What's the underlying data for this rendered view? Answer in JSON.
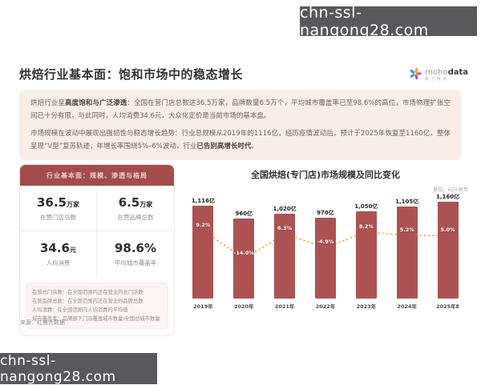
{
  "watermark": {
    "text": "chn-ssl-nangong28.com"
  },
  "header": {
    "title": "烘焙行业基本面：饱和市场中的稳态增长",
    "logo": {
      "name_light": "moho",
      "name_bold": "data",
      "subtitle": "魔方数据"
    }
  },
  "intro": {
    "p1_pre": "烘焙行业呈",
    "p1_bold": "高度饱和与广泛渗透",
    "p1_post": "：全国在营门店总数达36.5万家，品牌数量6.5万个，平均城市覆盖率已至98.6%的高位，市场物理扩张空间已十分有限，与此同时，人均消费34.6元，大众化定价是当前市场的基本盘。",
    "p2_pre": "市场规模在波动中展现出强韧性与稳态增长趋势：行业总规模从2019年的1116亿，经历疫情波动后，预计于2025年恢复至1160亿，整体呈现“V型”复苏轨迹，年增长率围绕5%–6%波动，行业",
    "p2_bold": "已告别高增长时代",
    "p2_post": "。"
  },
  "panel": {
    "header": "行业基本面：规模、渗透与格局",
    "stats": [
      {
        "num": "36.5",
        "unit": "万家",
        "label": "在营门店总数"
      },
      {
        "num": "6.5",
        "unit": "万家",
        "label": "在营品牌总数"
      },
      {
        "num": "34.6",
        "unit": "元",
        "label": "人均消费"
      },
      {
        "num": "98.6%",
        "unit": "",
        "label": "平均城市覆盖率"
      }
    ],
    "notes": [
      "在营总门店数：在全国范围内正在营业的总门店数",
      "在营品牌总数：在全国范围内正在营业的品牌总数",
      "人均消费：在全国范围内人均消费的平均值",
      "城市覆盖率：品牌旗下门店覆盖城市数量/全国总城市数量"
    ]
  },
  "source": "来源：红餐大数据",
  "chart_data": {
    "type": "bar",
    "title": "全国烘焙(专门店)市场规模及同比变化",
    "unit_label": "单位：元/人民币",
    "categories": [
      "2019年",
      "2020年",
      "2021年",
      "2022年",
      "2023年",
      "2024年",
      "2025年E"
    ],
    "series": [
      {
        "name": "市场规模",
        "type": "bar",
        "values": [
          1116,
          960,
          1020,
          970,
          1050,
          1105,
          1160
        ],
        "labels": [
          "1,116亿",
          "960亿",
          "1,020亿",
          "970亿",
          "1,050亿",
          "1,105亿",
          "1,160亿"
        ],
        "color": "#ad5252"
      },
      {
        "name": "同比变化",
        "type": "line",
        "values": [
          9.2,
          -14.0,
          6.3,
          -4.9,
          8.2,
          5.2,
          5.0
        ],
        "labels": [
          "9.2%",
          "-14.0%",
          "6.3%",
          "-4.9%",
          "8.2%",
          "5.2%",
          "5.0%"
        ],
        "color": "#e9a23b"
      }
    ],
    "ylim": [
      0,
      1250
    ],
    "legend_position": "none",
    "grid": false
  }
}
